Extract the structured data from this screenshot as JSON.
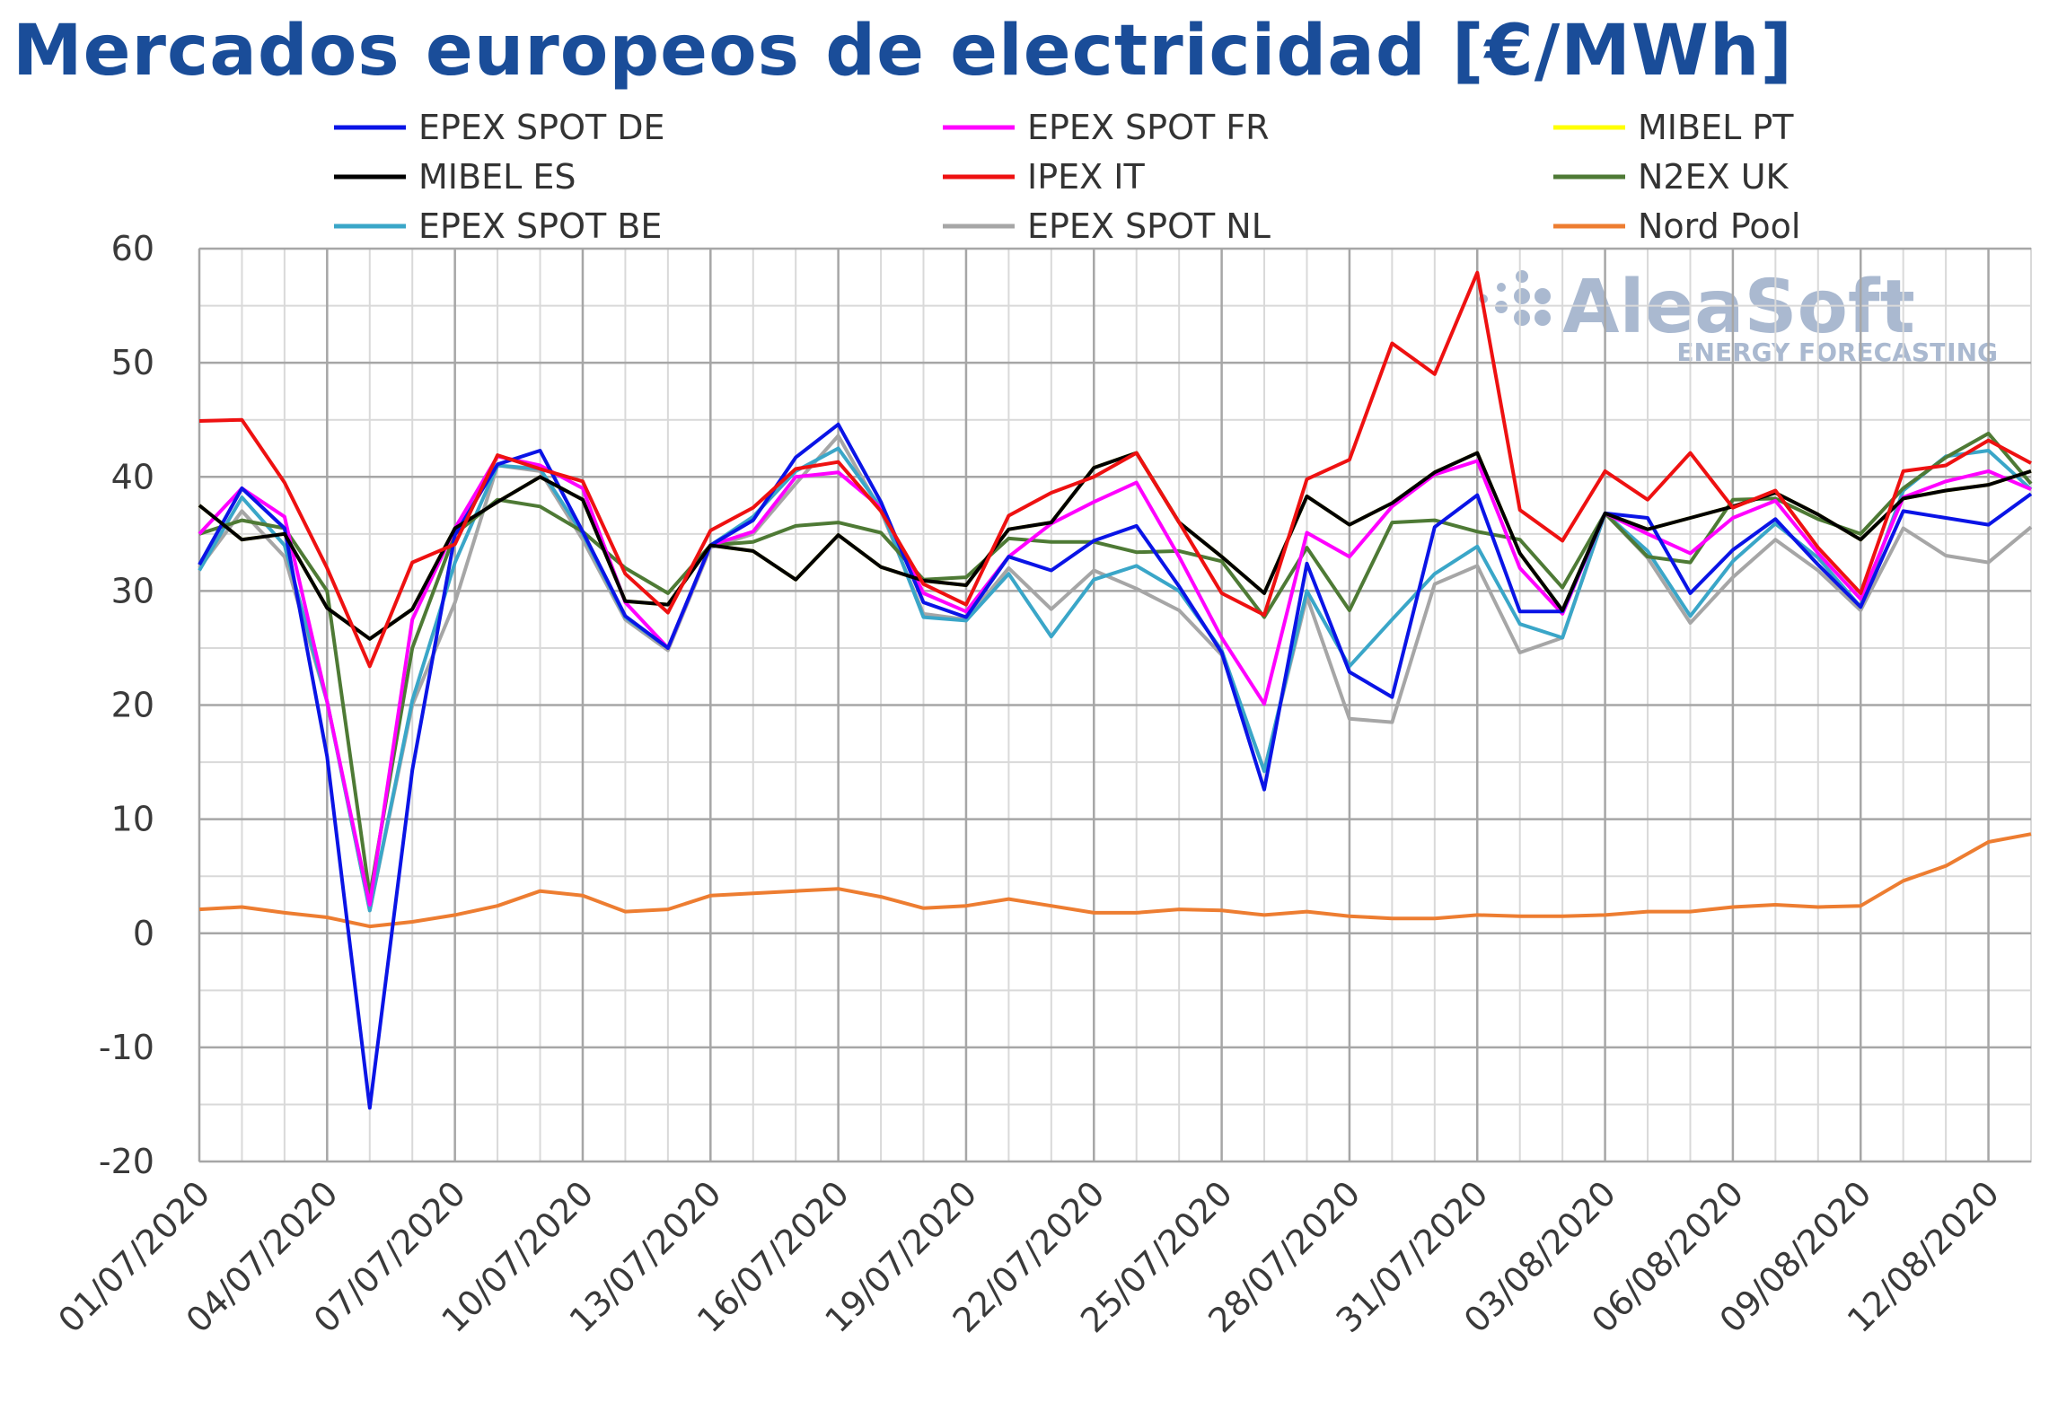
{
  "title": "Mercados europeos de electricidad [€/MWh]",
  "watermark": {
    "brand": "AleaSoft",
    "tagline": "ENERGY FORECASTING"
  },
  "chart_data": {
    "type": "line",
    "title": "Mercados europeos de electricidad [€/MWh]",
    "xlabel": "",
    "ylabel": "",
    "ylim": [
      -20,
      60
    ],
    "yticks": [
      -20,
      -10,
      0,
      10,
      20,
      30,
      40,
      50,
      60
    ],
    "grid": true,
    "legend_position": "top",
    "x": [
      "01/07/2020",
      "02/07/2020",
      "03/07/2020",
      "04/07/2020",
      "05/07/2020",
      "06/07/2020",
      "07/07/2020",
      "08/07/2020",
      "09/07/2020",
      "10/07/2020",
      "11/07/2020",
      "12/07/2020",
      "13/07/2020",
      "14/07/2020",
      "15/07/2020",
      "16/07/2020",
      "17/07/2020",
      "18/07/2020",
      "19/07/2020",
      "20/07/2020",
      "21/07/2020",
      "22/07/2020",
      "23/07/2020",
      "24/07/2020",
      "25/07/2020",
      "26/07/2020",
      "27/07/2020",
      "28/07/2020",
      "29/07/2020",
      "30/07/2020",
      "31/07/2020",
      "01/08/2020",
      "02/08/2020",
      "03/08/2020",
      "04/08/2020",
      "05/08/2020",
      "06/08/2020",
      "07/08/2020",
      "08/08/2020",
      "09/08/2020",
      "10/08/2020",
      "11/08/2020",
      "12/08/2020",
      "13/08/2020"
    ],
    "x_tick_labels": [
      "01/07/2020",
      "04/07/2020",
      "07/07/2020",
      "10/07/2020",
      "13/07/2020",
      "16/07/2020",
      "19/07/2020",
      "22/07/2020",
      "25/07/2020",
      "28/07/2020",
      "31/07/2020",
      "03/08/2020",
      "06/08/2020",
      "09/08/2020",
      "12/08/2020"
    ],
    "series": [
      {
        "name": "EPEX SPOT DE",
        "color": "#0a14e6",
        "values": [
          32.3,
          39.0,
          35.5,
          15.5,
          -15.3,
          14.3,
          34.9,
          41.1,
          42.3,
          35.2,
          27.8,
          25.0,
          34.0,
          36.2,
          41.7,
          44.6,
          37.8,
          29.0,
          27.7,
          33.0,
          31.8,
          34.4,
          35.7,
          30.4,
          24.6,
          12.6,
          32.4,
          22.9,
          20.7,
          35.6,
          38.4,
          28.2,
          28.2,
          36.8,
          36.4,
          29.8,
          33.6,
          36.3,
          32.3,
          28.6,
          37.0,
          36.4,
          35.8,
          38.5
        ]
      },
      {
        "name": "EPEX SPOT FR",
        "color": "#ff00ff",
        "values": [
          35.0,
          39.0,
          36.5,
          20.3,
          2.5,
          27.5,
          35.5,
          41.8,
          41.0,
          39.0,
          29.0,
          25.0,
          34.0,
          35.2,
          40.0,
          40.4,
          37.3,
          29.8,
          28.2,
          33.0,
          35.9,
          37.8,
          39.5,
          33.0,
          25.9,
          20.1,
          35.1,
          33.0,
          37.4,
          40.2,
          41.4,
          32.0,
          28.0,
          36.8,
          35.0,
          33.3,
          36.4,
          37.9,
          33.3,
          29.3,
          38.2,
          39.6,
          40.5,
          38.9
        ]
      },
      {
        "name": "MIBEL PT",
        "color": "#ffff00",
        "values": [
          37.5,
          34.5,
          35.0,
          28.5,
          25.8,
          28.4,
          35.5,
          37.8,
          40.0,
          38.0,
          29.1,
          28.8,
          34.0,
          33.5,
          31.0,
          34.9,
          32.1,
          30.9,
          30.5,
          35.4,
          36.0,
          40.8,
          42.1,
          36.0,
          33.0,
          29.8,
          38.3,
          35.8,
          37.7,
          40.4,
          42.1,
          33.3,
          28.3,
          36.8,
          35.4,
          36.4,
          37.4,
          38.6,
          36.7,
          34.5,
          38.1,
          38.8,
          39.3,
          40.5
        ]
      },
      {
        "name": "MIBEL ES",
        "color": "#000000",
        "values": [
          37.5,
          34.5,
          35.0,
          28.5,
          25.8,
          28.4,
          35.5,
          37.8,
          40.0,
          38.0,
          29.1,
          28.8,
          34.0,
          33.5,
          31.0,
          34.9,
          32.1,
          30.9,
          30.5,
          35.4,
          36.0,
          40.8,
          42.1,
          36.0,
          33.0,
          29.8,
          38.3,
          35.8,
          37.7,
          40.4,
          42.1,
          33.3,
          28.3,
          36.8,
          35.4,
          36.4,
          37.4,
          38.6,
          36.7,
          34.5,
          38.1,
          38.8,
          39.3,
          40.5
        ]
      },
      {
        "name": "IPEX IT",
        "color": "#ee1111",
        "values": [
          44.9,
          45.0,
          39.5,
          32.0,
          23.4,
          32.5,
          34.1,
          41.9,
          40.7,
          39.6,
          31.5,
          28.1,
          35.3,
          37.3,
          40.7,
          41.3,
          37.0,
          30.6,
          28.8,
          36.6,
          38.6,
          40.0,
          42.1,
          36.0,
          29.8,
          27.9,
          39.8,
          41.5,
          51.7,
          49.0,
          57.9,
          37.1,
          34.4,
          40.5,
          38.0,
          42.1,
          37.3,
          38.8,
          33.8,
          29.8,
          40.5,
          41.0,
          43.2,
          41.2
        ]
      },
      {
        "name": "N2EX UK",
        "color": "#4e7a35",
        "values": [
          35.0,
          36.2,
          35.5,
          30.0,
          3.3,
          25.0,
          35.0,
          38.0,
          37.4,
          35.2,
          32.0,
          29.8,
          34.0,
          34.3,
          35.7,
          36.0,
          35.1,
          31.0,
          31.2,
          34.6,
          34.3,
          34.3,
          33.4,
          33.5,
          32.6,
          27.7,
          33.8,
          28.3,
          36.0,
          36.2,
          35.2,
          34.5,
          30.3,
          36.8,
          33.0,
          32.5,
          38.0,
          38.1,
          36.3,
          35.0,
          39.0,
          41.7,
          43.8,
          39.4
        ]
      },
      {
        "name": "EPEX SPOT BE",
        "color": "#3aa6c8",
        "values": [
          31.8,
          38.2,
          34.0,
          20.3,
          2.0,
          20.4,
          32.5,
          41.0,
          40.7,
          35.0,
          27.7,
          25.0,
          34.0,
          36.5,
          40.5,
          42.5,
          37.3,
          27.7,
          27.4,
          31.5,
          26.0,
          31.0,
          32.2,
          30.0,
          24.8,
          14.2,
          30.0,
          23.4,
          27.5,
          31.5,
          33.9,
          27.1,
          25.9,
          36.8,
          33.5,
          27.8,
          32.6,
          35.9,
          32.9,
          28.6,
          38.8,
          41.8,
          42.3,
          38.9
        ]
      },
      {
        "name": "EPEX SPOT NL",
        "color": "#a6a6a6",
        "values": [
          32.0,
          37.0,
          33.0,
          20.3,
          2.0,
          20.0,
          29.0,
          41.0,
          40.5,
          34.5,
          27.5,
          24.8,
          33.8,
          35.0,
          39.4,
          43.6,
          37.0,
          28.0,
          27.5,
          32.0,
          28.4,
          31.8,
          30.2,
          28.3,
          24.4,
          14.3,
          29.5,
          18.8,
          18.5,
          30.6,
          32.2,
          24.6,
          25.9,
          36.8,
          32.9,
          27.2,
          31.2,
          34.5,
          31.8,
          28.3,
          35.5,
          33.1,
          32.5,
          35.6
        ]
      },
      {
        "name": "Nord Pool",
        "color": "#ed7d31",
        "values": [
          2.1,
          2.3,
          1.8,
          1.4,
          0.6,
          1.0,
          1.6,
          2.4,
          3.7,
          3.3,
          1.9,
          2.1,
          3.3,
          3.5,
          3.7,
          3.9,
          3.2,
          2.2,
          2.4,
          3.0,
          2.4,
          1.8,
          1.8,
          2.1,
          2.0,
          1.6,
          1.9,
          1.5,
          1.3,
          1.3,
          1.6,
          1.5,
          1.5,
          1.6,
          1.9,
          1.9,
          2.3,
          2.5,
          2.3,
          2.4,
          4.6,
          5.9,
          8.0,
          8.7
        ]
      }
    ]
  }
}
